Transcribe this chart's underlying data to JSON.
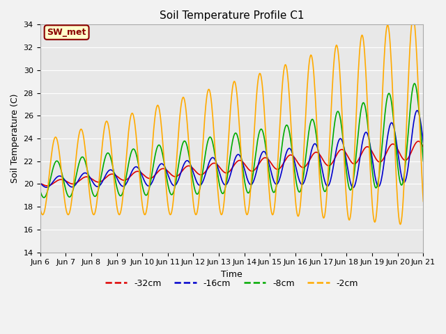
{
  "title": "Soil Temperature Profile C1",
  "xlabel": "Time",
  "ylabel": "Soil Temperature (C)",
  "ylim": [
    14,
    34
  ],
  "bg_color": "#e8e8e8",
  "fig_bg_color": "#f2f2f2",
  "label_box_text": "SW_met",
  "label_box_bg": "#ffffcc",
  "label_box_border": "#8B0000",
  "label_box_text_color": "#8B0000",
  "series": {
    "depth_32cm": {
      "label": "-32cm",
      "color": "#dd0000",
      "linewidth": 1.2
    },
    "depth_16cm": {
      "label": "-16cm",
      "color": "#0000cc",
      "linewidth": 1.2
    },
    "depth_8cm": {
      "label": "-8cm",
      "color": "#00aa00",
      "linewidth": 1.2
    },
    "depth_2cm": {
      "label": "-2cm",
      "color": "#ffaa00",
      "linewidth": 1.2
    }
  },
  "x_tick_labels": [
    "Jun 6",
    "Jun 7",
    "Jun 8",
    "Jun 9",
    "Jun 10",
    "Jun 11",
    "Jun 12",
    "Jun 13",
    "Jun 14",
    "Jun 15",
    "Jun 16",
    "Jun 17",
    "Jun 18",
    "Jun 19",
    "Jun 20",
    "Jun 21"
  ],
  "grid_color": "#ffffff",
  "grid_linewidth": 0.8
}
